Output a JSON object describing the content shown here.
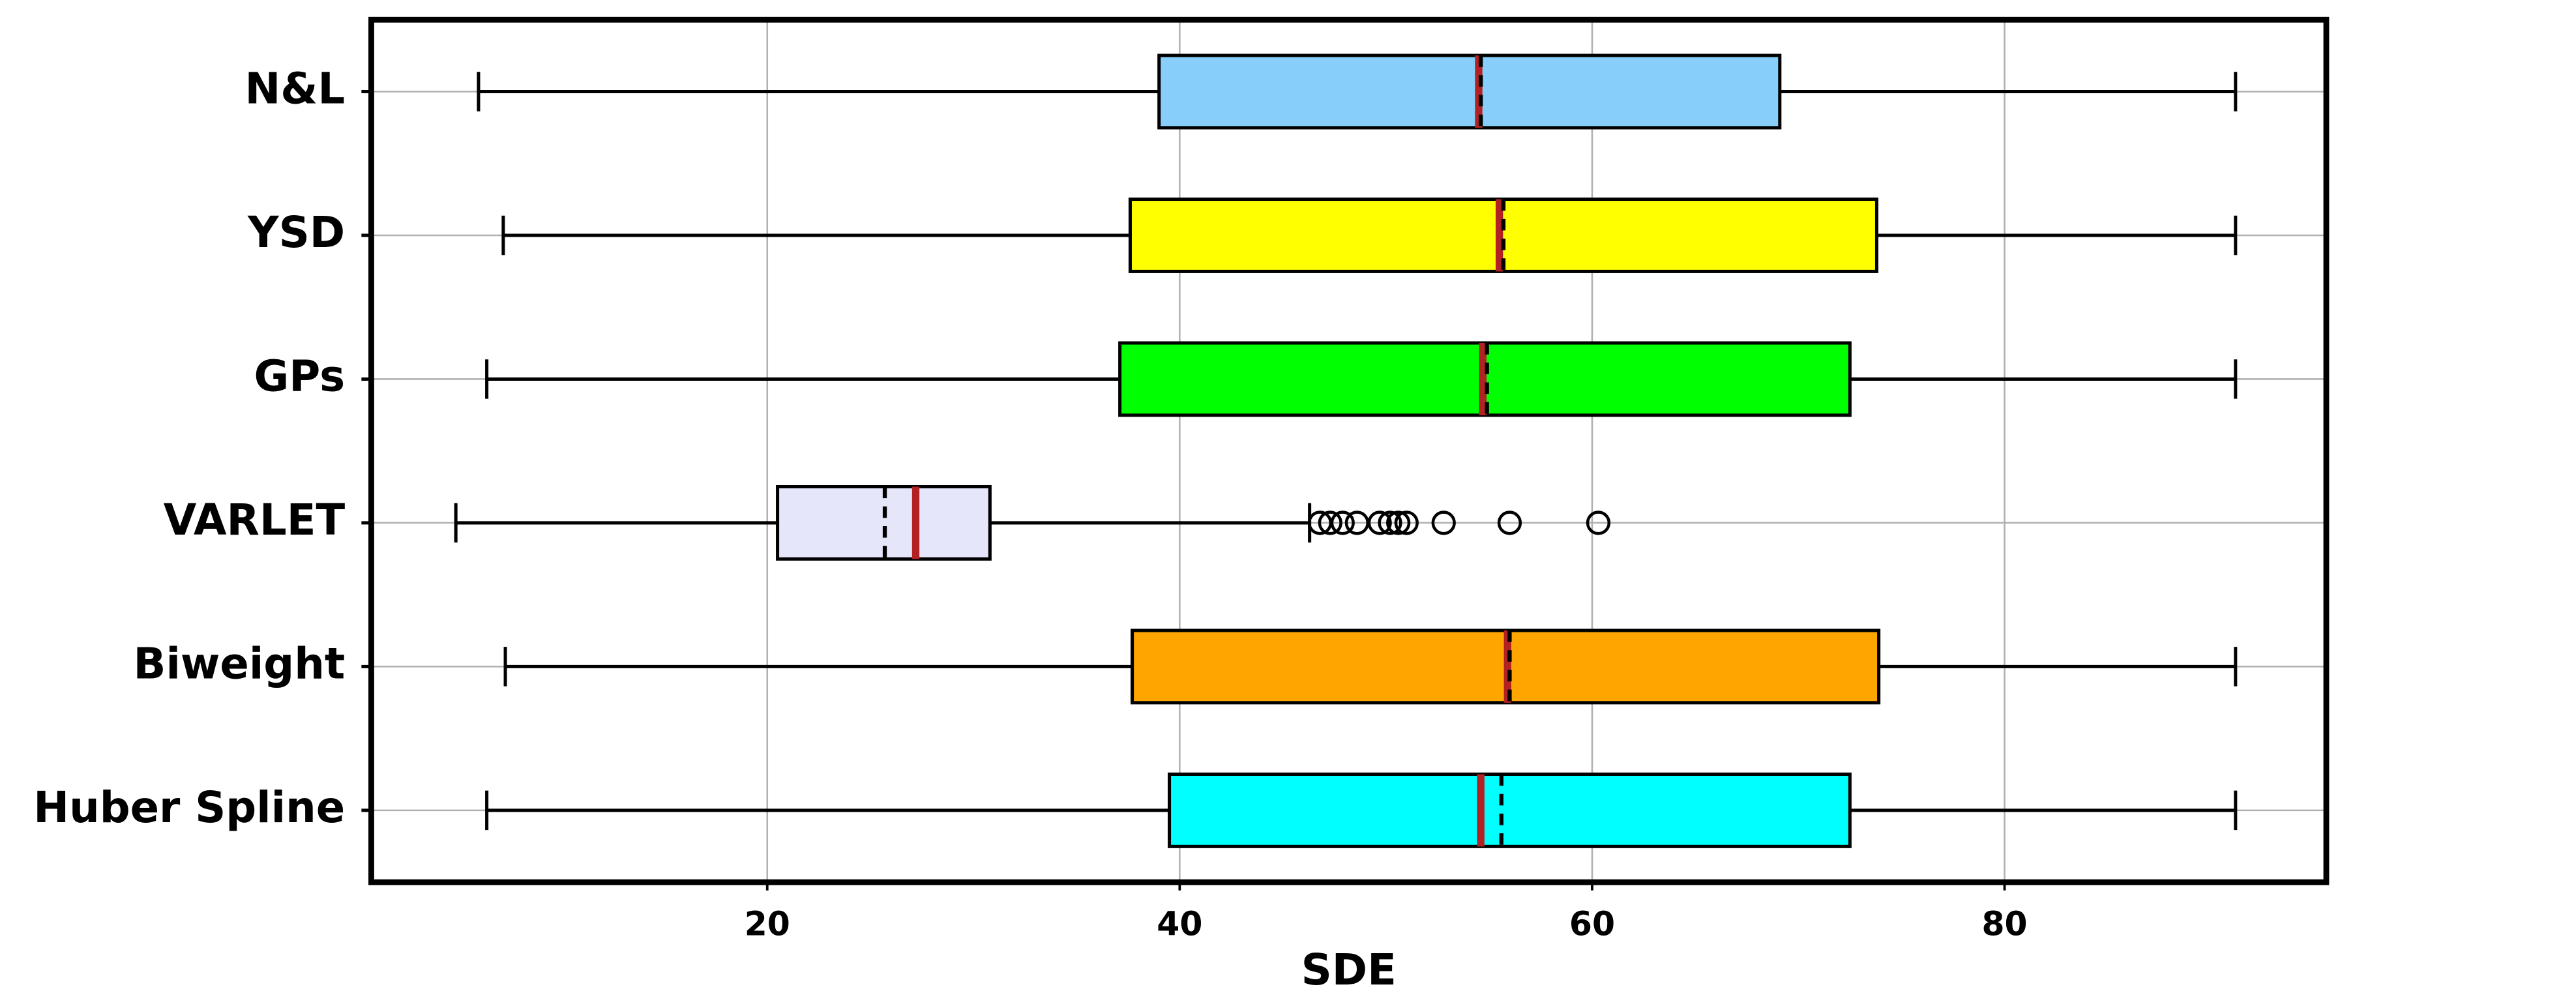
{
  "chart_data": {
    "type": "box",
    "orientation": "horizontal",
    "xlabel": "SDE",
    "xlim": [
      0.8,
      95.6
    ],
    "xticks": [
      20,
      40,
      60,
      80
    ],
    "grid": true,
    "median_color": "#b22222",
    "boxes": [
      {
        "name": "N&L",
        "color": "#87cefa",
        "whisker_low": 6.0,
        "q1": 39.0,
        "median": 54.5,
        "mean": 54.6,
        "q3": 69.1,
        "whisker_high": 91.2,
        "outliers": []
      },
      {
        "name": "YSD",
        "color": "#ffff00",
        "whisker_low": 7.2,
        "q1": 37.6,
        "median": 55.5,
        "mean": 55.7,
        "q3": 73.8,
        "whisker_high": 91.2,
        "outliers": []
      },
      {
        "name": "GPs",
        "color": "#00ff00",
        "whisker_low": 6.4,
        "q1": 37.1,
        "median": 54.7,
        "mean": 54.9,
        "q3": 72.5,
        "whisker_high": 91.2,
        "outliers": []
      },
      {
        "name": "VARLET",
        "color": "#e6e6fa",
        "whisker_low": 4.9,
        "q1": 20.5,
        "median": 27.2,
        "mean": 25.7,
        "q3": 30.8,
        "whisker_high": 46.3,
        "outliers": [
          46.8,
          47.3,
          47.9,
          48.6,
          49.7,
          50.2,
          50.6,
          51.0,
          52.8,
          56.0,
          60.3
        ]
      },
      {
        "name": "Biweight",
        "color": "#ffa500",
        "whisker_low": 7.3,
        "q1": 37.7,
        "median": 55.9,
        "mean": 56.0,
        "q3": 73.9,
        "whisker_high": 91.2,
        "outliers": []
      },
      {
        "name": "Huber Spline",
        "color": "#00ffff",
        "whisker_low": 6.4,
        "q1": 39.5,
        "median": 54.6,
        "mean": 55.6,
        "q3": 72.5,
        "whisker_high": 91.2,
        "outliers": []
      }
    ]
  }
}
